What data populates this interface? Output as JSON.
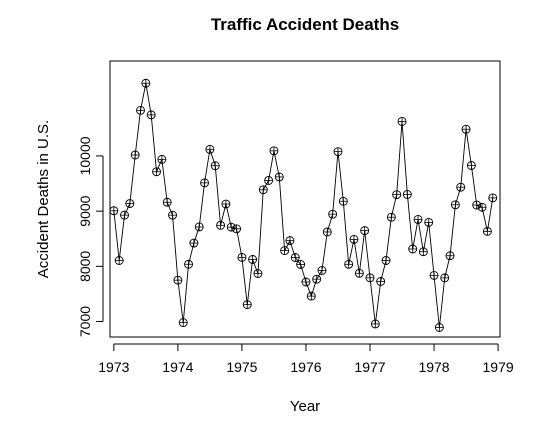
{
  "chart_data": {
    "type": "line",
    "title": "Traffic Accident Deaths",
    "xlabel": "Year",
    "ylabel": "Accident Deaths in U.S.",
    "xlim": [
      1972.94,
      1979.03
    ],
    "ylim": [
      6720,
      11720
    ],
    "x_ticks": [
      1973,
      1974,
      1975,
      1976,
      1977,
      1978,
      1979
    ],
    "x_tick_labels": [
      "1973",
      "1974",
      "1975",
      "1976",
      "1977",
      "1978",
      "1979"
    ],
    "y_ticks": [
      7000,
      8000,
      9000,
      10000
    ],
    "y_tick_labels": [
      "7000",
      "8000",
      "9000",
      "10000"
    ],
    "grid": false,
    "marker": "circle-plus",
    "series": [
      {
        "x_start": 1973,
        "frequency": 12,
        "values": [
          9007,
          8106,
          8928,
          9137,
          10017,
          10826,
          11317,
          10744,
          9713,
          9938,
          9161,
          8927,
          7750,
          6981,
          8038,
          8422,
          8714,
          9512,
          10120,
          9823,
          8743,
          9129,
          8710,
          8680,
          8162,
          7306,
          8124,
          7870,
          9387,
          9556,
          10093,
          9620,
          8285,
          8466,
          8160,
          8034,
          7717,
          7461,
          7767,
          7925,
          8623,
          8945,
          10078,
          9179,
          8037,
          8488,
          7874,
          8647,
          7792,
          6957,
          7726,
          8106,
          8890,
          9299,
          10625,
          9302,
          8314,
          8850,
          8265,
          8796,
          7836,
          6892,
          7791,
          8192,
          9115,
          9434,
          10484,
          9827,
          9110,
          9070,
          8633,
          9240
        ]
      }
    ]
  }
}
